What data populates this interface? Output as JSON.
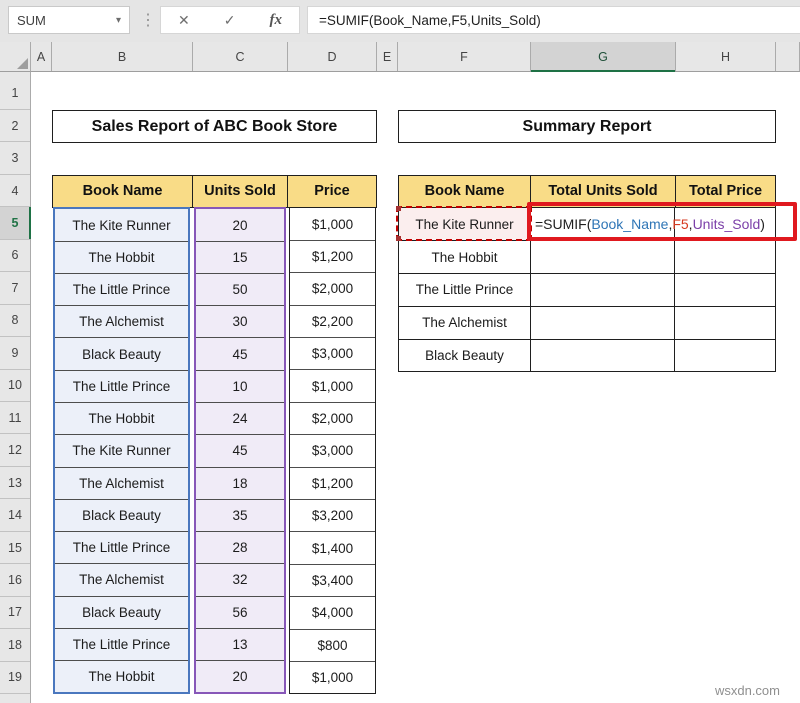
{
  "window": {
    "name_box": "SUM",
    "formula_bar": "=SUMIF(Book_Name,F5,Units_Sold)"
  },
  "icons": {
    "dropdown": "▾",
    "cancel": "✕",
    "confirm": "✓",
    "insert_function": "fx",
    "divider_dots": "⋮"
  },
  "grid": {
    "column_headers": [
      "A",
      "B",
      "C",
      "D",
      "E",
      "F",
      "G",
      "H",
      ""
    ],
    "selected_column": "G",
    "row_headers": [
      "1",
      "2",
      "3",
      "4",
      "5",
      "6",
      "7",
      "8",
      "9",
      "10",
      "11",
      "12",
      "13",
      "14",
      "15",
      "16",
      "17",
      "18",
      "19"
    ],
    "selected_row": "5"
  },
  "sales_table": {
    "title": "Sales Report of ABC Book Store",
    "headers": [
      "Book Name",
      "Units Sold",
      "Price"
    ],
    "rows": [
      [
        "The Kite Runner",
        "20",
        "$1,000"
      ],
      [
        "The Hobbit",
        "15",
        "$1,200"
      ],
      [
        "The Little Prince",
        "50",
        "$2,000"
      ],
      [
        "The Alchemist",
        "30",
        "$2,200"
      ],
      [
        "Black Beauty",
        "45",
        "$3,000"
      ],
      [
        "The Little Prince",
        "10",
        "$1,000"
      ],
      [
        "The Hobbit",
        "24",
        "$2,000"
      ],
      [
        "The Kite Runner",
        "45",
        "$3,000"
      ],
      [
        "The Alchemist",
        "18",
        "$1,200"
      ],
      [
        "Black Beauty",
        "35",
        "$3,200"
      ],
      [
        "The Little Prince",
        "28",
        "$1,400"
      ],
      [
        "The Alchemist",
        "32",
        "$3,400"
      ],
      [
        "Black Beauty",
        "56",
        "$4,000"
      ],
      [
        "The Little Prince",
        "13",
        "$800"
      ],
      [
        "The Hobbit",
        "20",
        "$1,000"
      ]
    ]
  },
  "summary_table": {
    "title": "Summary Report",
    "headers": [
      "Book Name",
      "Total Units Sold",
      "Total Price"
    ],
    "book_names": [
      "The Kite Runner",
      "The Hobbit",
      "The Little Prince",
      "The Alchemist",
      "Black Beauty"
    ],
    "active_cell_formula": [
      {
        "text": "=SUMIF(",
        "color": "#1f1f1f"
      },
      {
        "text": "Book_Name",
        "color": "#2E75B6"
      },
      {
        "text": ",",
        "color": "#1f1f1f"
      },
      {
        "text": "F5",
        "color": "#D63A21"
      },
      {
        "text": ",",
        "color": "#1f1f1f"
      },
      {
        "text": "Units_Sold",
        "color": "#7B3FA8"
      },
      {
        "text": ")",
        "color": "#1f1f1f"
      }
    ]
  },
  "watermark": "wsxdn.com",
  "colors": {
    "accent_green": "#1E7145",
    "annotation_red": "#E0191F",
    "header_yellow": "#F9DC87",
    "title_green": "#C6E0B4",
    "blue_border": "#4A77BE",
    "blue_fill": "#ECF0F9",
    "purple_border": "#8757B8",
    "purple_fill": "#F0EBF7",
    "pink_fill": "#FBEEEE",
    "ant_red": "#C00000",
    "row_divider": "#4d4d4d",
    "table_border": "#1f1f1f"
  }
}
